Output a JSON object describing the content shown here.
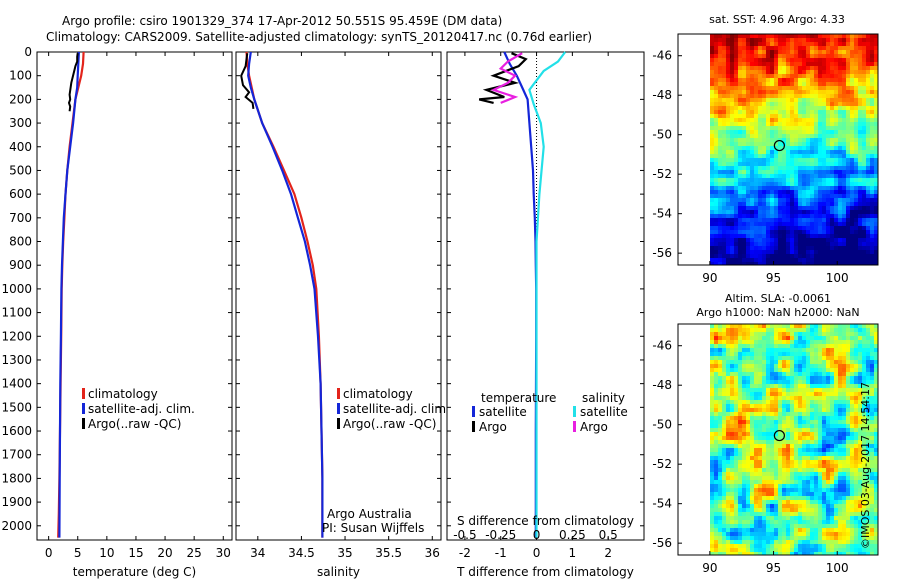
{
  "header": {
    "title_line1": "Argo profile: csiro 1901329_374 17-Apr-2012 50.551S 95.459E (DM data)",
    "title_line2": "Climatology: CARS2009. Satellite-adjusted climatology: synTS_20120417.nc (0.76d earlier)"
  },
  "credit": "©IMOS 03-Aug-2017 14:54:17",
  "colors": {
    "climatology": "#e3241b",
    "satellite": "#1426d8",
    "argo": "#000000",
    "sal_satellite": "#22e0e8",
    "sal_argo": "#e81fe0"
  },
  "chart_data": [
    {
      "type": "line",
      "panel": "temperature",
      "xlabel": "temperature (deg C)",
      "ylabel": "",
      "xlim": [
        -2,
        31.5
      ],
      "ylim": [
        2060,
        0
      ],
      "xticks": [
        "0",
        "5",
        "10",
        "15",
        "20",
        "25",
        "30"
      ],
      "yticks": [
        "0",
        "100",
        "200",
        "300",
        "400",
        "500",
        "600",
        "700",
        "800",
        "900",
        "1000",
        "1100",
        "1200",
        "1300",
        "1400",
        "1500",
        "1600",
        "1700",
        "1800",
        "1900",
        "2000"
      ],
      "legend": [
        "climatology",
        "satellite-adj. clim.",
        "Argo(..raw -QC)"
      ],
      "series": [
        {
          "name": "climatology",
          "x": [
            6.0,
            5.9,
            5.6,
            5.1,
            4.6,
            4.1,
            3.6,
            3.2,
            2.9,
            2.7,
            2.5,
            2.35,
            2.25,
            2.15,
            2.05,
            1.95,
            1.85,
            1.75,
            1.65
          ],
          "y": [
            0,
            50,
            100,
            150,
            200,
            300,
            400,
            500,
            600,
            700,
            800,
            900,
            1000,
            1200,
            1400,
            1600,
            1800,
            1950,
            2050
          ]
        },
        {
          "name": "satellite-adj. clim.",
          "x": [
            5.2,
            5.1,
            5.0,
            4.9,
            4.6,
            4.2,
            3.7,
            3.2,
            2.9,
            2.6,
            2.45,
            2.3,
            2.2,
            2.1,
            2.0,
            1.95,
            1.9,
            1.85
          ],
          "y": [
            0,
            50,
            100,
            150,
            200,
            300,
            400,
            500,
            600,
            700,
            800,
            900,
            1000,
            1200,
            1400,
            1600,
            1800,
            2050
          ]
        },
        {
          "name": "Argo(..raw -QC)",
          "x": [
            5.0,
            4.9,
            4.9,
            4.6,
            3.9,
            3.6,
            3.7,
            3.5,
            3.7,
            3.6
          ],
          "y": [
            5,
            20,
            40,
            60,
            130,
            180,
            200,
            215,
            230,
            250
          ]
        }
      ]
    },
    {
      "type": "line",
      "panel": "salinity",
      "xlabel": "salinity",
      "ylabel": "",
      "xlim": [
        33.75,
        36.1
      ],
      "ylim": [
        2060,
        0
      ],
      "xticks": [
        "34",
        "34.5",
        "35",
        "35.5",
        "36"
      ],
      "legend": [
        "climatology",
        "satellite-adj. clim.",
        "Argo(..raw -QC)"
      ],
      "annotation": [
        "Argo Australia",
        "PI: Susan Wijffels"
      ],
      "series": [
        {
          "name": "climatology",
          "x": [
            33.87,
            33.88,
            33.9,
            33.93,
            33.96,
            34.05,
            34.18,
            34.3,
            34.42,
            34.5,
            34.57,
            34.63,
            34.67,
            34.7,
            34.72,
            34.73,
            34.74,
            34.74
          ],
          "y": [
            0,
            50,
            100,
            150,
            200,
            300,
            400,
            500,
            600,
            700,
            800,
            900,
            1000,
            1200,
            1400,
            1600,
            1800,
            2050
          ]
        },
        {
          "name": "satellite-adj. clim.",
          "x": [
            33.92,
            33.9,
            33.89,
            33.92,
            33.96,
            34.05,
            34.17,
            34.28,
            34.38,
            34.46,
            34.54,
            34.6,
            34.65,
            34.69,
            34.72,
            34.73,
            34.74,
            34.74
          ],
          "y": [
            0,
            50,
            100,
            150,
            200,
            300,
            400,
            500,
            600,
            700,
            800,
            900,
            1000,
            1200,
            1400,
            1600,
            1800,
            2050
          ]
        },
        {
          "name": "Argo(..raw -QC)",
          "x": [
            33.88,
            33.87,
            33.86,
            33.81,
            33.83,
            33.9,
            33.86,
            33.94,
            33.95
          ],
          "y": [
            5,
            30,
            60,
            100,
            140,
            170,
            190,
            215,
            240
          ]
        }
      ]
    },
    {
      "type": "line",
      "panel": "difference",
      "xlabel": "T difference from climatology",
      "xlabel_top": "S difference from climatology",
      "xlim": [
        -2.5,
        3.0
      ],
      "ylim": [
        2060,
        0
      ],
      "xticks": [
        "-2",
        "-1",
        "0",
        "1",
        "2"
      ],
      "xticks_top": [
        "-0.5",
        "-0.25",
        "0",
        "0.25",
        "0.5"
      ],
      "legend": {
        "temperature_title": "temperature",
        "salinity_title": "salinity",
        "items": [
          "satellite",
          "Argo",
          "satellite",
          "Argo"
        ]
      },
      "series": [
        {
          "name": "temperature satellite",
          "x": [
            -0.9,
            -0.75,
            -0.55,
            -0.4,
            -0.25,
            -0.2,
            -0.15,
            -0.1,
            -0.08,
            -0.05,
            -0.03,
            -0.02,
            -0.01,
            -0.01,
            -0.02,
            -0.02
          ],
          "y": [
            0,
            50,
            100,
            150,
            200,
            300,
            400,
            500,
            600,
            700,
            800,
            900,
            1000,
            1200,
            1600,
            2050
          ]
        },
        {
          "name": "temperature Argo",
          "x": [
            -0.7,
            -0.3,
            -0.5,
            -1.2,
            -0.6,
            -1.4,
            -0.9,
            -1.6,
            -1.2
          ],
          "y": [
            5,
            30,
            60,
            100,
            130,
            160,
            190,
            200,
            215
          ]
        },
        {
          "name": "salinity satellite",
          "x": [
            0.2,
            0.15,
            0.05,
            0.0,
            -0.05,
            -0.02,
            0.03,
            0.05,
            0.02,
            0.0,
            0.0,
            0.0,
            0.0,
            0.0
          ],
          "y": [
            0,
            40,
            80,
            120,
            160,
            220,
            300,
            400,
            600,
            800,
            1000,
            1300,
            1600,
            2050
          ]
        },
        {
          "name": "salinity Argo",
          "x": [
            -0.1,
            -0.2,
            -0.25,
            -0.15,
            -0.2,
            -0.3,
            -0.15,
            -0.25
          ],
          "y": [
            5,
            40,
            70,
            100,
            130,
            160,
            190,
            215
          ]
        }
      ]
    },
    {
      "type": "heatmap",
      "panel": "sst_map",
      "title": "sat. SST: 4.96 Argo: 4.33",
      "xticks": [
        "90",
        "95",
        "100"
      ],
      "yticks": [
        "-46",
        "-48",
        "-50",
        "-52",
        "-54",
        "-56"
      ],
      "xlim": [
        87.5,
        103.2
      ],
      "ylim": [
        -56.6,
        -44.9
      ],
      "marker": {
        "lon": 95.459,
        "lat": -50.551
      }
    },
    {
      "type": "heatmap",
      "panel": "sla_map",
      "title": "Altim. SLA: -0.0061",
      "subtitle": "Argo h1000: NaN h2000: NaN",
      "xticks": [
        "90",
        "95",
        "100"
      ],
      "yticks": [
        "-46",
        "-48",
        "-50",
        "-52",
        "-54",
        "-56"
      ],
      "xlim": [
        87.5,
        103.2
      ],
      "ylim": [
        -56.6,
        -44.9
      ],
      "marker": {
        "lon": 95.459,
        "lat": -50.551
      }
    }
  ]
}
